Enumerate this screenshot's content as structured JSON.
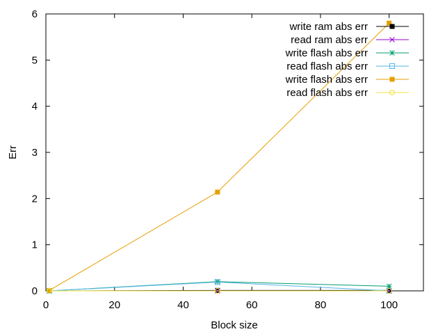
{
  "chart_data": {
    "type": "line",
    "xlabel": "Block size",
    "ylabel": "Err",
    "xlim": [
      0,
      110
    ],
    "ylim": [
      0,
      6
    ],
    "xticks": [
      0,
      20,
      40,
      60,
      80,
      100
    ],
    "yticks": [
      0,
      1,
      2,
      3,
      4,
      5,
      6
    ],
    "grid": false,
    "legend_position": "top-right",
    "series": [
      {
        "name": "write ram abs err",
        "color": "#000000",
        "marker": "filled-square",
        "x": [
          1,
          50,
          100
        ],
        "y": [
          0.0,
          0.01,
          0.01
        ]
      },
      {
        "name": "read ram abs err",
        "color": "#9400d3",
        "marker": "x",
        "x": [
          1,
          50,
          100
        ],
        "y": [
          0.0,
          0.0,
          0.0
        ]
      },
      {
        "name": "write flash abs err",
        "color": "#009e73",
        "marker": "star",
        "x": [
          1,
          50,
          100
        ],
        "y": [
          0.0,
          0.2,
          0.1
        ]
      },
      {
        "name": "read flash abs err",
        "color": "#56b4e9",
        "marker": "open-square",
        "x": [
          1,
          50,
          100
        ],
        "y": [
          0.0,
          0.19,
          0.0
        ]
      },
      {
        "name": "write flash abs err",
        "color": "#e69f00",
        "marker": "filled-square",
        "x": [
          1,
          50,
          100
        ],
        "y": [
          0.01,
          2.14,
          5.8
        ]
      },
      {
        "name": "read flash abs err",
        "color": "#f0e442",
        "marker": "open-circle",
        "x": [
          1,
          50,
          100
        ],
        "y": [
          0.0,
          0.0,
          0.0
        ]
      }
    ]
  }
}
